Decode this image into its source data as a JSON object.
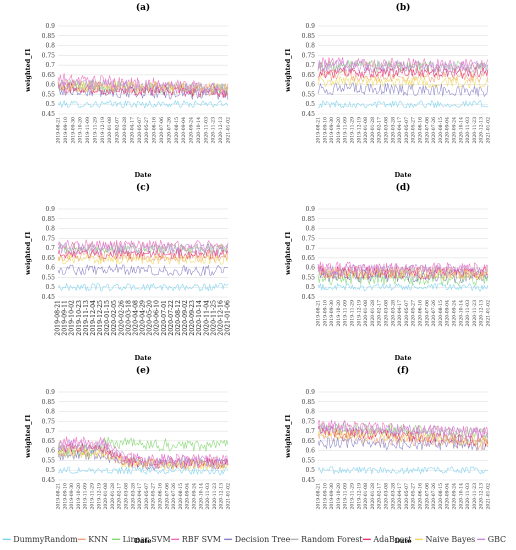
{
  "figure": {
    "y_axis_label": "weighted_f1",
    "x_axis_label": "Date",
    "y_ticks": [
      "0.45",
      "0.5",
      "0.55",
      "0.6",
      "0.65",
      "0.7",
      "0.75",
      "0.8",
      "0.85",
      "0.9"
    ]
  },
  "legend": [
    {
      "name": "DummyRandom",
      "color": "#7fd3f0"
    },
    {
      "name": "KNN",
      "color": "#f3a07a"
    },
    {
      "name": "Linear SVM",
      "color": "#83d86f"
    },
    {
      "name": "RBF SVM",
      "color": "#f06cbf"
    },
    {
      "name": "Decision Tree",
      "color": "#8a82c8"
    },
    {
      "name": "Random Forest",
      "color": "#b5b5b5"
    },
    {
      "name": "AdaBoost",
      "color": "#e8347a"
    },
    {
      "name": "Naive Bayes",
      "color": "#f0d860"
    },
    {
      "name": "GBC",
      "color": "#c98ae0"
    }
  ],
  "chart_data": [
    {
      "type": "line",
      "panel": "(a)",
      "ylim": [
        0.45,
        0.9
      ],
      "n_points": 140,
      "x_ticks": [
        "2019-08-21",
        "2019-09-10",
        "2019-09-30",
        "2019-10-20",
        "2019-11-09",
        "2019-11-29",
        "2019-12-19",
        "2020-01-08",
        "2020-02-07",
        "2020-03-28",
        "2020-04-17",
        "2020-05-07",
        "2020-05-27",
        "2020-06-16",
        "2020-07-06",
        "2020-07-26",
        "2020-08-15",
        "2020-09-04",
        "2020-09-24",
        "2020-10-14",
        "2020-11-03",
        "2020-11-23",
        "2020-12-13",
        "2021-01-02"
      ],
      "series": [
        {
          "name": "DummyRandom",
          "start": 0.5,
          "end": 0.5,
          "noise": 0.012
        },
        {
          "name": "KNN",
          "start": 0.59,
          "end": 0.565,
          "noise": 0.018
        },
        {
          "name": "Linear SVM",
          "start": 0.6,
          "end": 0.575,
          "noise": 0.02
        },
        {
          "name": "RBF SVM",
          "start": 0.625,
          "end": 0.58,
          "noise": 0.022
        },
        {
          "name": "Decision Tree",
          "start": 0.57,
          "end": 0.55,
          "noise": 0.02
        },
        {
          "name": "Random Forest",
          "start": 0.6,
          "end": 0.575,
          "noise": 0.018
        },
        {
          "name": "AdaBoost",
          "start": 0.585,
          "end": 0.56,
          "noise": 0.018
        },
        {
          "name": "Naive Bayes",
          "start": 0.595,
          "end": 0.585,
          "noise": 0.018
        },
        {
          "name": "GBC",
          "start": 0.605,
          "end": 0.575,
          "noise": 0.02
        }
      ]
    },
    {
      "type": "line",
      "panel": "(b)",
      "ylim": [
        0.45,
        0.9
      ],
      "n_points": 140,
      "x_ticks": [
        "2019-08-21",
        "2019-09-10",
        "2019-09-30",
        "2019-10-20",
        "2019-11-09",
        "2019-11-29",
        "2019-12-19",
        "2020-01-08",
        "2020-01-28",
        "2020-02-17",
        "2020-03-08",
        "2020-03-28",
        "2020-04-17",
        "2020-05-07",
        "2020-05-27",
        "2020-06-16",
        "2020-07-06",
        "2020-07-26",
        "2020-08-15",
        "2020-09-04",
        "2020-09-24",
        "2020-10-14",
        "2020-11-03",
        "2020-11-23",
        "2020-12-13",
        "2021-01-02"
      ],
      "series": [
        {
          "name": "DummyRandom",
          "start": 0.5,
          "end": 0.5,
          "noise": 0.012
        },
        {
          "name": "KNN",
          "start": 0.65,
          "end": 0.64,
          "noise": 0.02
        },
        {
          "name": "Linear SVM",
          "start": 0.7,
          "end": 0.69,
          "noise": 0.018
        },
        {
          "name": "RBF SVM",
          "start": 0.71,
          "end": 0.7,
          "noise": 0.02
        },
        {
          "name": "Decision Tree",
          "start": 0.58,
          "end": 0.57,
          "noise": 0.02
        },
        {
          "name": "Random Forest",
          "start": 0.69,
          "end": 0.68,
          "noise": 0.018
        },
        {
          "name": "AdaBoost",
          "start": 0.66,
          "end": 0.66,
          "noise": 0.018
        },
        {
          "name": "Naive Bayes",
          "start": 0.62,
          "end": 0.61,
          "noise": 0.018
        },
        {
          "name": "GBC",
          "start": 0.7,
          "end": 0.69,
          "noise": 0.02
        }
      ]
    },
    {
      "type": "line",
      "panel": "(c)",
      "ylim": [
        0.45,
        0.9
      ],
      "n_points": 140,
      "x_ticks": [
        "2019-08-21",
        "2019-09-11",
        "2019-10-02",
        "2019-10-23",
        "2019-11-13",
        "2019-12-04",
        "2019-12-25",
        "2020-01-15",
        "2020-02-05",
        "2020-02-26",
        "2020-03-18",
        "2020-04-08",
        "2020-04-29",
        "2020-05-20",
        "2020-06-10",
        "2020-07-01",
        "2020-07-22",
        "2020-08-12",
        "2020-09-02",
        "2020-09-23",
        "2020-10-14",
        "2020-11-04",
        "2020-11-25",
        "2020-12-16",
        "2021-01-06"
      ],
      "series": [
        {
          "name": "DummyRandom",
          "start": 0.5,
          "end": 0.5,
          "noise": 0.012
        },
        {
          "name": "KNN",
          "start": 0.66,
          "end": 0.655,
          "noise": 0.018
        },
        {
          "name": "Linear SVM",
          "start": 0.7,
          "end": 0.7,
          "noise": 0.016
        },
        {
          "name": "RBF SVM",
          "start": 0.715,
          "end": 0.71,
          "noise": 0.018
        },
        {
          "name": "Decision Tree",
          "start": 0.59,
          "end": 0.585,
          "noise": 0.018
        },
        {
          "name": "Random Forest",
          "start": 0.69,
          "end": 0.685,
          "noise": 0.016
        },
        {
          "name": "AdaBoost",
          "start": 0.67,
          "end": 0.67,
          "noise": 0.016
        },
        {
          "name": "Naive Bayes",
          "start": 0.645,
          "end": 0.64,
          "noise": 0.016
        },
        {
          "name": "GBC",
          "start": 0.7,
          "end": 0.695,
          "noise": 0.018
        }
      ]
    },
    {
      "type": "line",
      "panel": "(d)",
      "ylim": [
        0.45,
        0.9
      ],
      "n_points": 140,
      "x_ticks": [
        "2019-08-21",
        "2019-09-10",
        "2019-09-30",
        "2019-10-20",
        "2019-11-09",
        "2019-11-29",
        "2019-12-19",
        "2020-01-08",
        "2020-01-28",
        "2020-02-17",
        "2020-03-08",
        "2020-03-28",
        "2020-04-17",
        "2020-05-07",
        "2020-05-27",
        "2020-06-16",
        "2020-07-06",
        "2020-07-26",
        "2020-08-15",
        "2020-09-04",
        "2020-09-24",
        "2020-10-14",
        "2020-11-03",
        "2020-11-23",
        "2020-12-13",
        "2021-01-02"
      ],
      "series": [
        {
          "name": "DummyRandom",
          "start": 0.5,
          "end": 0.5,
          "noise": 0.012
        },
        {
          "name": "KNN",
          "start": 0.58,
          "end": 0.57,
          "noise": 0.02
        },
        {
          "name": "Linear SVM",
          "start": 0.545,
          "end": 0.54,
          "noise": 0.02
        },
        {
          "name": "RBF SVM",
          "start": 0.595,
          "end": 0.59,
          "noise": 0.022
        },
        {
          "name": "Decision Tree",
          "start": 0.56,
          "end": 0.555,
          "noise": 0.02
        },
        {
          "name": "Random Forest",
          "start": 0.585,
          "end": 0.58,
          "noise": 0.018
        },
        {
          "name": "AdaBoost",
          "start": 0.575,
          "end": 0.57,
          "noise": 0.02
        },
        {
          "name": "Naive Bayes",
          "start": 0.57,
          "end": 0.565,
          "noise": 0.018
        },
        {
          "name": "GBC",
          "start": 0.59,
          "end": 0.585,
          "noise": 0.02
        }
      ]
    },
    {
      "type": "line",
      "panel": "(e)",
      "ylim": [
        0.45,
        0.9
      ],
      "n_points": 140,
      "x_ticks": [
        "2019-08-21",
        "2019-09-10",
        "2019-09-30",
        "2019-10-20",
        "2019-11-09",
        "2019-11-29",
        "2019-12-19",
        "2020-01-08",
        "2020-01-28",
        "2020-02-17",
        "2020-03-08",
        "2020-03-28",
        "2020-04-17",
        "2020-05-07",
        "2020-05-27",
        "2020-06-16",
        "2020-07-06",
        "2020-07-26",
        "2020-08-15",
        "2020-09-04",
        "2020-09-24",
        "2020-10-14",
        "2020-11-03",
        "2020-11-23",
        "2020-12-13",
        "2021-01-02"
      ],
      "series": [
        {
          "name": "DummyRandom",
          "start": 0.5,
          "end": 0.495,
          "noise": 0.012
        },
        {
          "name": "KNN",
          "start": 0.6,
          "end": 0.53,
          "noise": 0.018,
          "dropAt": 0.27
        },
        {
          "name": "Linear SVM",
          "start": 0.6,
          "end": 0.625,
          "noise": 0.02,
          "riseAt": 0.27,
          "peak": 0.64
        },
        {
          "name": "RBF SVM",
          "start": 0.64,
          "end": 0.55,
          "noise": 0.02,
          "dropAt": 0.27
        },
        {
          "name": "Decision Tree",
          "start": 0.58,
          "end": 0.53,
          "noise": 0.018,
          "dropAt": 0.27
        },
        {
          "name": "Random Forest",
          "start": 0.62,
          "end": 0.54,
          "noise": 0.018,
          "dropAt": 0.27
        },
        {
          "name": "AdaBoost",
          "start": 0.61,
          "end": 0.535,
          "noise": 0.018,
          "dropAt": 0.27
        },
        {
          "name": "Naive Bayes",
          "start": 0.59,
          "end": 0.53,
          "noise": 0.018,
          "dropAt": 0.27
        },
        {
          "name": "GBC",
          "start": 0.63,
          "end": 0.545,
          "noise": 0.02,
          "dropAt": 0.27
        }
      ]
    },
    {
      "type": "line",
      "panel": "(f)",
      "ylim": [
        0.45,
        0.9
      ],
      "n_points": 140,
      "x_ticks": [
        "2019-08-21",
        "2019-09-10",
        "2019-09-30",
        "2019-10-20",
        "2019-11-09",
        "2019-11-29",
        "2019-12-19",
        "2020-01-08",
        "2020-01-28",
        "2020-02-17",
        "2020-03-08",
        "2020-03-28",
        "2020-04-17",
        "2020-05-07",
        "2020-05-27",
        "2020-06-16",
        "2020-07-06",
        "2020-07-26",
        "2020-08-15",
        "2020-09-04",
        "2020-09-24",
        "2020-10-14",
        "2020-11-03",
        "2020-11-23",
        "2020-12-13",
        "2021-01-02"
      ],
      "series": [
        {
          "name": "DummyRandom",
          "start": 0.5,
          "end": 0.5,
          "noise": 0.012
        },
        {
          "name": "KNN",
          "start": 0.68,
          "end": 0.63,
          "noise": 0.02
        },
        {
          "name": "Linear SVM",
          "start": 0.72,
          "end": 0.69,
          "noise": 0.018
        },
        {
          "name": "RBF SVM",
          "start": 0.73,
          "end": 0.69,
          "noise": 0.02
        },
        {
          "name": "Decision Tree",
          "start": 0.64,
          "end": 0.63,
          "noise": 0.02
        },
        {
          "name": "Random Forest",
          "start": 0.71,
          "end": 0.66,
          "noise": 0.018
        },
        {
          "name": "AdaBoost",
          "start": 0.7,
          "end": 0.65,
          "noise": 0.018
        },
        {
          "name": "Naive Bayes",
          "start": 0.69,
          "end": 0.65,
          "noise": 0.018
        },
        {
          "name": "GBC",
          "start": 0.72,
          "end": 0.69,
          "noise": 0.02
        }
      ]
    }
  ]
}
